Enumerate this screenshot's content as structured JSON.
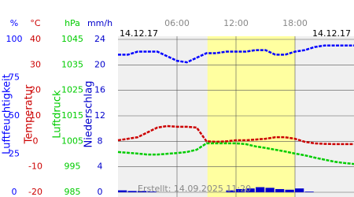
{
  "chart_data": {
    "type": "multi-axis-line",
    "date_left": "14.12.17",
    "date_right": "14.12.17",
    "footer": "Erstellt: 14.09.2025 11:20",
    "xlim": [
      0,
      24
    ],
    "xticks": [
      {
        "value": 6,
        "label": "06:00"
      },
      {
        "value": 12,
        "label": "12:00"
      },
      {
        "value": 18,
        "label": "18:00"
      }
    ],
    "daylight": [
      9.1,
      18
    ],
    "x": [
      0,
      1,
      2,
      3,
      4,
      5,
      6,
      7,
      8,
      9,
      10,
      11,
      12,
      13,
      14,
      15,
      16,
      17,
      18,
      19,
      20,
      21,
      22,
      23,
      24
    ],
    "axes": [
      {
        "unit": "%",
        "title": "Luftfeuchtigkeit",
        "color": "#0000ff",
        "ylim": [
          0,
          100
        ],
        "yticks": [
          0,
          25,
          50,
          75,
          100
        ]
      },
      {
        "unit": "°C",
        "title": "Temperatur",
        "color": "#cc0000",
        "ylim": [
          -20,
          40
        ],
        "yticks": [
          -20,
          -10,
          0,
          10,
          20,
          30,
          40
        ]
      },
      {
        "unit": "hPa",
        "title": "Luftdruck",
        "color": "#00cc00",
        "ylim": [
          985,
          1045
        ],
        "yticks": [
          985,
          995,
          1005,
          1015,
          1025,
          1035,
          1045
        ]
      },
      {
        "unit": "mm/h",
        "title": "Niederschlag",
        "color": "#0000cc",
        "ylim": [
          0,
          24
        ],
        "yticks": [
          0,
          4,
          8,
          12,
          16,
          20,
          24
        ]
      }
    ],
    "series": [
      {
        "axis": 0,
        "kind": "line",
        "color": "#0000ff",
        "values": [
          90,
          90,
          92,
          92,
          92,
          89,
          86,
          85,
          88,
          91,
          91,
          92,
          92,
          92,
          93,
          93,
          90,
          90,
          92,
          93,
          95,
          96,
          96,
          96,
          96
        ]
      },
      {
        "axis": 1,
        "kind": "line",
        "color": "#cc0000",
        "values": [
          0.4,
          1,
          1.6,
          3.5,
          5.4,
          6,
          5.7,
          5.7,
          5.4,
          0,
          -0.2,
          0,
          0.4,
          0.4,
          0.7,
          1,
          1.6,
          1.6,
          1,
          -0.2,
          -0.8,
          -1,
          -1.1,
          -1.1,
          -1.1
        ]
      },
      {
        "axis": 2,
        "kind": "line",
        "color": "#00cc00",
        "values": [
          1000.8,
          1000.5,
          1000.2,
          999.8,
          999.8,
          1000.1,
          1000.4,
          1000.8,
          1001.7,
          1004.2,
          1004.2,
          1004.2,
          1004.2,
          1003.9,
          1003.0,
          1002.4,
          1001.7,
          1001.0,
          1000.2,
          999.5,
          998.6,
          997.8,
          997.0,
          996.5,
          996.1
        ]
      },
      {
        "axis": 3,
        "kind": "bar",
        "color": "#0000cc",
        "values": [
          0.3,
          0.2,
          0.2,
          0.1,
          0,
          0,
          0,
          0,
          0,
          0,
          0,
          0.3,
          0.5,
          0.6,
          0.8,
          0.7,
          0.5,
          0.4,
          0.6,
          0.1,
          0,
          0,
          0,
          0,
          0
        ]
      }
    ]
  }
}
